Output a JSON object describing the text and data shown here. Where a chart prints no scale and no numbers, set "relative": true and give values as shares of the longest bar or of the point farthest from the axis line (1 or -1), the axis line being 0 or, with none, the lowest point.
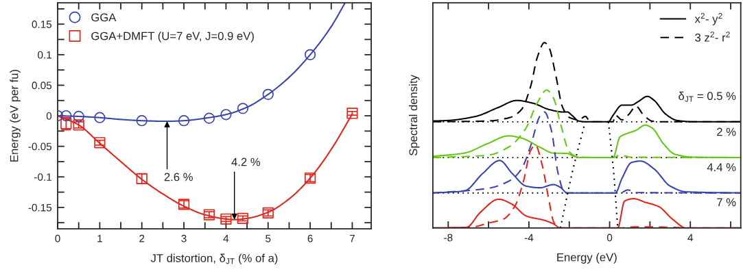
{
  "chart_data": [
    {
      "type": "scatter",
      "xlabel": "JT distortion, δ$_{JT}$ (% of a)",
      "ylabel": "Energy (eV per fu)",
      "xlim": [
        0,
        7.45
      ],
      "ylim": [
        -0.185,
        0.185
      ],
      "xticks": [
        0,
        {
          "value": 0.5,
          "label": null
        },
        1,
        {
          "value": 1.5,
          "label": null
        },
        2,
        {
          "value": 2.5,
          "label": null
        },
        3,
        {
          "value": 3.5,
          "label": null
        },
        4,
        {
          "value": 4.5,
          "label": null
        },
        5,
        {
          "value": 5.5,
          "label": null
        },
        6,
        {
          "value": 6.5,
          "label": null
        },
        7
      ],
      "yticks": [
        {
          "value": -0.175,
          "label": null
        },
        -0.15,
        {
          "value": -0.125,
          "label": null
        },
        -0.1,
        {
          "value": -0.075,
          "label": null
        },
        -0.05,
        {
          "value": -0.025,
          "label": null
        },
        0,
        {
          "value": 0.025,
          "label": null
        },
        0.05,
        {
          "value": 0.075,
          "label": null
        },
        0.1,
        {
          "value": 0.125,
          "label": null
        },
        0.15,
        {
          "value": 0.175,
          "label": null
        }
      ],
      "legend": "top left",
      "series": [
        {
          "name": "GGA",
          "type": "scatter",
          "marker": "circle",
          "color": "#3a44b0",
          "x": [
            0,
            0.2,
            0.5,
            1,
            2,
            3,
            3.6,
            4,
            4.4,
            5,
            6
          ],
          "values": [
            0,
            0,
            -0.001,
            -0.003,
            -0.008,
            -0.008,
            -0.004,
            0.002,
            0.012,
            0.035,
            0.1
          ]
        },
        {
          "name": "GGA+DMFT (U=7 eV, J=0.9 eV)",
          "type": "scatter",
          "marker": "square",
          "color": "#e0261e",
          "x": [
            0.2,
            0.5,
            1,
            2,
            3,
            3.6,
            4,
            4.4,
            5,
            6,
            7
          ],
          "values": [
            -0.013,
            -0.015,
            -0.044,
            -0.103,
            -0.145,
            -0.162,
            -0.169,
            -0.168,
            -0.159,
            -0.102,
            0.004
          ],
          "errors": [
            0.01,
            0.005,
            0.004,
            0.008,
            0.006,
            0.005,
            0.004,
            0.004,
            0.005,
            0.006,
            0.003
          ]
        },
        {
          "type": "line",
          "color": "#3a44b0",
          "x": [
            0,
            0.5,
            1,
            1.5,
            2,
            2.6,
            3,
            3.5,
            4,
            4.5,
            5,
            5.5,
            6,
            6.5,
            6.83
          ],
          "values": [
            0,
            -0.001,
            -0.003,
            -0.006,
            -0.008,
            -0.009,
            -0.008,
            -0.004,
            0.002,
            0.014,
            0.035,
            0.063,
            0.1,
            0.146,
            0.185
          ]
        },
        {
          "type": "line",
          "color": "#e0261e",
          "x": [
            0,
            0.5,
            1,
            1.5,
            2,
            2.5,
            3,
            3.5,
            4,
            4.2,
            4.5,
            5,
            5.5,
            6,
            6.5,
            7
          ],
          "values": [
            0,
            -0.015,
            -0.045,
            -0.075,
            -0.104,
            -0.128,
            -0.148,
            -0.162,
            -0.169,
            -0.17,
            -0.168,
            -0.158,
            -0.136,
            -0.102,
            -0.055,
            0.003
          ]
        }
      ],
      "annotations": [
        {
          "text": "2.6 %",
          "x": 2.6,
          "y": -0.009
        },
        {
          "text": "4.2 %",
          "x": 4.2,
          "y": -0.17
        }
      ]
    },
    {
      "type": "line",
      "relative": true,
      "xlabel": "Energy (eV)",
      "ylabel": "Spectral density",
      "xlim": [
        -8.76,
        6.5
      ],
      "xticks": [
        -8,
        {
          "value": -6,
          "label": null
        },
        -4,
        {
          "value": -2,
          "label": null
        },
        0,
        {
          "value": 2,
          "label": null
        },
        4,
        {
          "value": 6,
          "label": null
        }
      ],
      "tick_labels": "x",
      "legend": "top right",
      "ref_lines": [
        {
          "axis": "y",
          "value": 0.573,
          "color": "#000000",
          "line_style": "dotted"
        },
        {
          "axis": "y",
          "value": 0.38,
          "color": "#000000",
          "line_style": "dotted"
        },
        {
          "axis": "y",
          "value": 0.189,
          "color": "#000000",
          "line_style": "dotted"
        }
      ],
      "series": [
        {
          "name": "x$^{2}$- y$^{2}$",
          "color": "#000000",
          "line_style": "solid",
          "x": [
            -8.76,
            -8,
            -6.64,
            -5.5,
            -4.6,
            -3.8,
            -3.0,
            -2.33,
            -2.1,
            -1.87,
            -1.53,
            -1.2,
            -0.06,
            0.17,
            0.62,
            1.08,
            1.42,
            1.87,
            2.21,
            2.78,
            3.35,
            4.14,
            6.5
          ],
          "values": [
            0.577,
            0.58,
            0.602,
            0.651,
            0.688,
            0.673,
            0.639,
            0.626,
            0.626,
            0.608,
            0.577,
            0.573,
            0.573,
            0.608,
            0.663,
            0.663,
            0.682,
            0.71,
            0.688,
            0.614,
            0.58,
            0.573,
            0.573
          ]
        },
        {
          "name": "3 z$^{2}$- r$^{2}$",
          "color": "#000000",
          "line_style": "dashed",
          "x": [
            -8.76,
            -6.07,
            -4.94,
            -4.37,
            -3.92,
            -3.58,
            -3.23,
            -3.0,
            -2.67,
            -2.33,
            -1.99,
            -1.53,
            -1.2,
            -0.96,
            0.17,
            0.28,
            0.62,
            0.96,
            1.31,
            1.65,
            2.1,
            2.44,
            6.5
          ],
          "values": [
            0.573,
            0.577,
            0.596,
            0.639,
            0.762,
            0.922,
            1.0,
            0.972,
            0.824,
            0.651,
            0.596,
            0.583,
            0.602,
            0.573,
            0.573,
            0.608,
            0.583,
            0.614,
            0.657,
            0.614,
            0.577,
            0.573,
            0.573
          ]
        },
        {
          "color": "#66c614",
          "line_style": "solid",
          "x": [
            -8.76,
            -7.2,
            -6.07,
            -5.0,
            -4.37,
            -3.46,
            -2.78,
            -2.1,
            -1.76,
            -1.42,
            0.17,
            0.51,
            0.85,
            1.31,
            1.76,
            2.1,
            2.67,
            3.23,
            4.14,
            6.5
          ],
          "values": [
            0.386,
            0.404,
            0.454,
            0.497,
            0.485,
            0.436,
            0.404,
            0.402,
            0.386,
            0.38,
            0.38,
            0.491,
            0.509,
            0.527,
            0.555,
            0.54,
            0.454,
            0.398,
            0.382,
            0.38
          ]
        },
        {
          "color": "#66c614",
          "line_style": "dashed",
          "x": [
            -8.76,
            -6.07,
            -4.94,
            -4.14,
            -3.58,
            -3.12,
            -2.78,
            -2.44,
            -1.99,
            -1.53,
            0.17,
            0.51,
            1.08,
            6.5
          ],
          "values": [
            0.38,
            0.392,
            0.441,
            0.54,
            0.676,
            0.744,
            0.7,
            0.565,
            0.41,
            0.382,
            0.38,
            0.392,
            0.382,
            0.38
          ]
        },
        {
          "color": "#3a44b0",
          "line_style": "solid",
          "x": [
            -8.76,
            -7.2,
            -6.3,
            -5.45,
            -4.82,
            -4.14,
            -3.46,
            -2.78,
            -2.44,
            -2.1,
            0.28,
            0.62,
            1.08,
            1.53,
            2.21,
            3.0,
            3.8,
            6.5
          ],
          "values": [
            0.189,
            0.2,
            0.293,
            0.364,
            0.293,
            0.226,
            0.217,
            0.234,
            0.219,
            0.189,
            0.189,
            0.269,
            0.353,
            0.361,
            0.318,
            0.226,
            0.195,
            0.189
          ]
        },
        {
          "color": "#3a44b0",
          "line_style": "dashed",
          "x": [
            -8.76,
            -6.07,
            -4.94,
            -4.37,
            -3.92,
            -3.46,
            -3.23,
            -2.89,
            -2.55,
            -2.21,
            0.51,
            0.91,
            1.31,
            6.5
          ],
          "values": [
            0.189,
            0.213,
            0.256,
            0.318,
            0.441,
            0.602,
            0.626,
            0.528,
            0.293,
            0.189,
            0.189,
            0.205,
            0.191,
            0.189
          ]
        },
        {
          "color": "#e0261e",
          "line_style": "solid",
          "x": [
            -8.76,
            -7.09,
            -6.41,
            -5.5,
            -4.82,
            -4.14,
            -3.23,
            -2.78,
            -2.44,
            0.4,
            0.74,
            1.19,
            1.76,
            2.44,
            3.12,
            3.8,
            6.5
          ],
          "values": [
            0,
            0.004,
            0.084,
            0.155,
            0.127,
            0.065,
            0.041,
            0.022,
            0,
            0,
            0.145,
            0.158,
            0.139,
            0.115,
            0.047,
            0,
            0
          ]
        },
        {
          "color": "#e0261e",
          "line_style": "dashed",
          "x": [
            -8.76,
            -6.87,
            -5.96,
            -5.28,
            -4.71,
            -4.26,
            -3.92,
            -3.69,
            -3.35,
            -3.0,
            -2.78,
            -2.55,
            0.51,
            1.31,
            2.98,
            3.89,
            6.5
          ],
          "values": [
            0,
            0.004,
            0.028,
            0.047,
            0.115,
            0.256,
            0.417,
            0.448,
            0.343,
            0.145,
            0.035,
            0,
            0,
            0.006,
            0.004,
            0,
            0
          ]
        },
        {
          "color": "#000000",
          "line_style": "dotted",
          "x": [
            -2.44,
            -1.85,
            -1.21
          ],
          "values": [
            0,
            0.3,
            0.573
          ]
        },
        {
          "color": "#000000",
          "line_style": "dotted",
          "x": [
            -0.06,
            0.2,
            0.4
          ],
          "values": [
            0.573,
            0.3,
            0
          ]
        }
      ],
      "annotations": [
        "δ$_{JT}$ = 0.5 %",
        "2 %",
        "4.4 %",
        "7 %"
      ]
    }
  ]
}
